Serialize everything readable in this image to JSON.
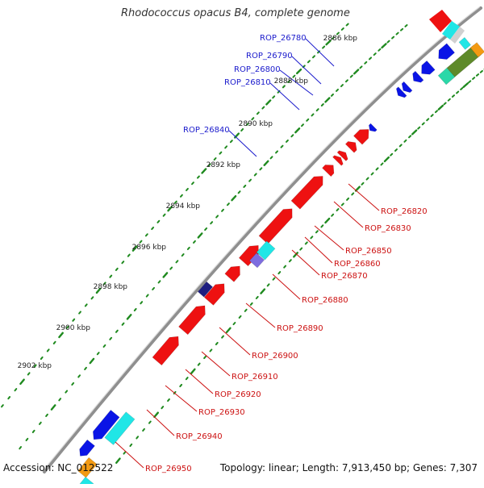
{
  "map": {
    "title": "Rhodococcus opacus B4, complete genome",
    "accession": "Accession: NC_012522",
    "summary": "Topology: linear; Length: 7,913,450 bp; Genes: 7,307",
    "ticks": [
      "2886 kbp",
      "2888 kbp",
      "2890 kbp",
      "2892 kbp",
      "2894 kbp",
      "2896 kbp",
      "2898 kbp",
      "2900 kbp",
      "2902 kbp"
    ],
    "genes_forward": [
      "ROP_26780",
      "ROP_26790",
      "ROP_26800",
      "ROP_26810",
      "ROP_26840"
    ],
    "genes_reverse": [
      "ROP_26820",
      "ROP_26830",
      "ROP_26850",
      "ROP_26860",
      "ROP_26870",
      "ROP_26880",
      "ROP_26890",
      "ROP_26900",
      "ROP_26910",
      "ROP_26920",
      "ROP_26930",
      "ROP_26940",
      "ROP_26950"
    ],
    "colors": {
      "forward": "#0a14e6",
      "reverse": "#ee1111",
      "orange": "#f39a12",
      "cyan": "#20e6e6",
      "olive": "#5e8a2a",
      "teal": "#2ad8a8",
      "violet": "#7d6cdf",
      "navy": "#1e1e80",
      "backbone": "#9a9a9a",
      "dots": "#1f8a1f",
      "forward_label": "#1a1acc",
      "reverse_label": "#cc1111"
    }
  }
}
